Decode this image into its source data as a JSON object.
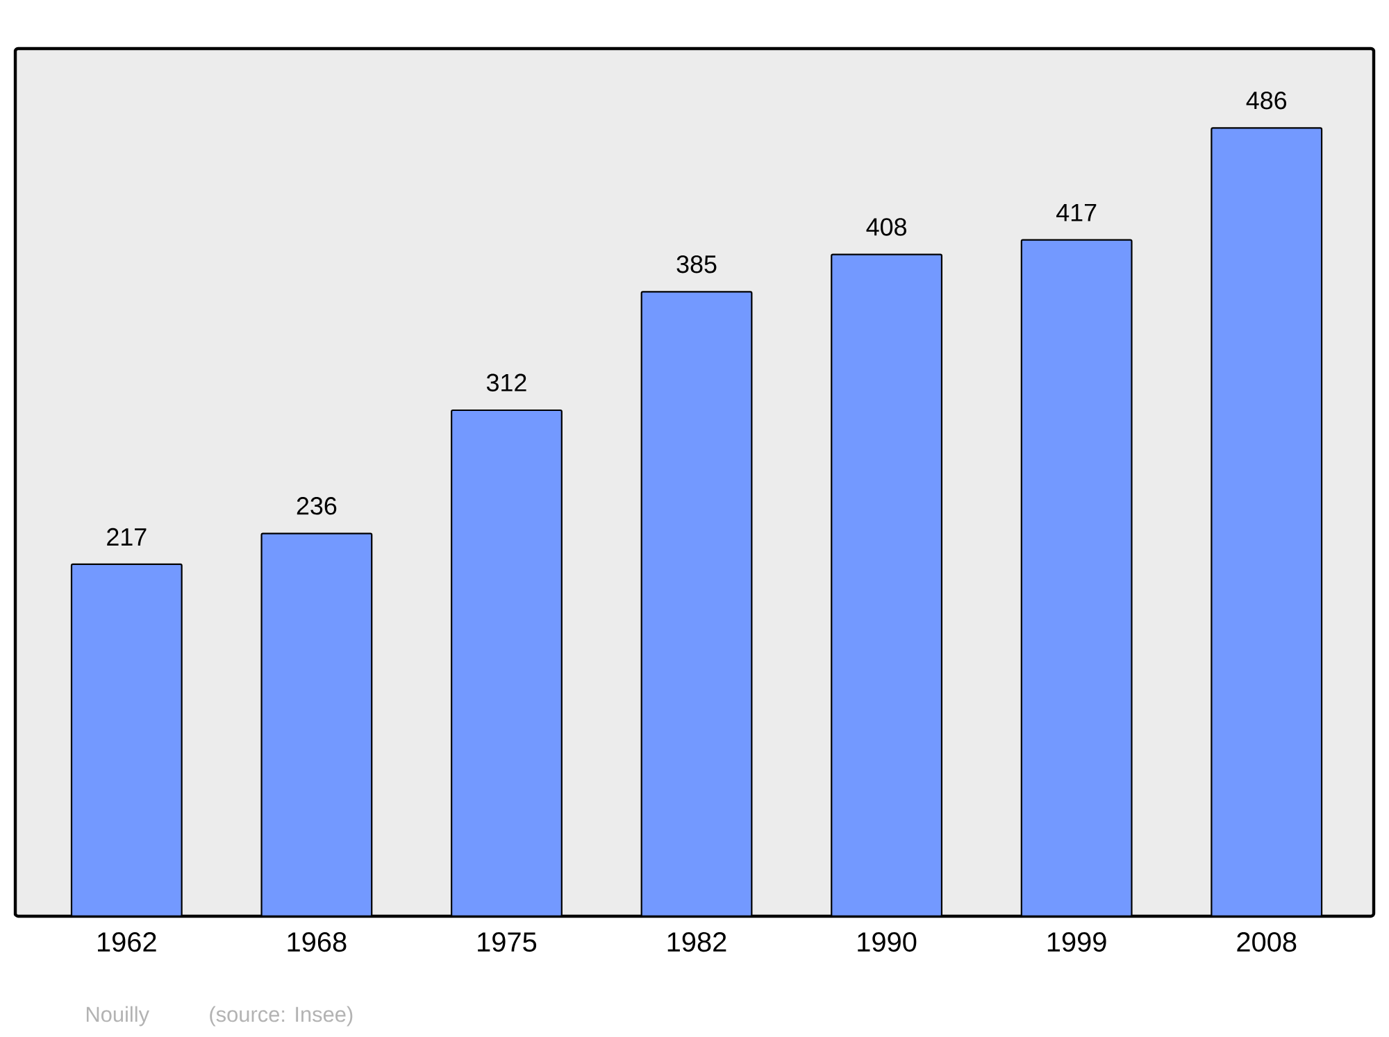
{
  "chart_data": {
    "type": "bar",
    "categories": [
      "1962",
      "1968",
      "1975",
      "1982",
      "1990",
      "1999",
      "2008"
    ],
    "values": [
      217,
      236,
      312,
      385,
      408,
      417,
      486
    ],
    "color": "#7399ff",
    "ylim": [
      0,
      535
    ],
    "data_labels": true,
    "tick_labels": "x",
    "grid": false,
    "annotations": [
      "Nouilly",
      "(source: Insee)"
    ]
  }
}
